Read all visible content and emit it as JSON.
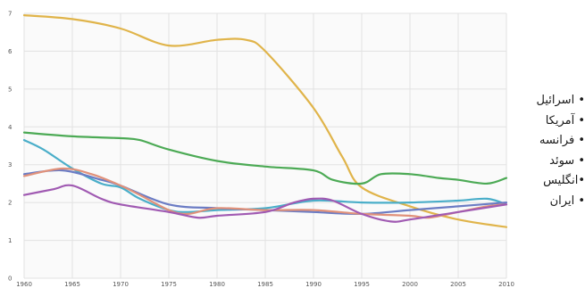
{
  "chart_data": {
    "type": "line",
    "title": "",
    "xlabel": "",
    "ylabel": "",
    "xlim": [
      1960,
      2010
    ],
    "ylim": [
      0,
      7
    ],
    "xticks": [
      1960,
      1965,
      1970,
      1975,
      1980,
      1985,
      1990,
      1995,
      2000,
      2005,
      2010
    ],
    "yticks": [
      0,
      1,
      2,
      3,
      4,
      5,
      6,
      7
    ],
    "grid": true,
    "legend_position": "right",
    "series": [
      {
        "name": "ایران",
        "color": "#e0b44a",
        "points": [
          [
            1960,
            6.95
          ],
          [
            1965,
            6.85
          ],
          [
            1970,
            6.6
          ],
          [
            1975,
            6.15
          ],
          [
            1980,
            6.3
          ],
          [
            1983,
            6.3
          ],
          [
            1985,
            6.0
          ],
          [
            1990,
            4.5
          ],
          [
            1993,
            3.2
          ],
          [
            1995,
            2.4
          ],
          [
            2000,
            1.9
          ],
          [
            2005,
            1.55
          ],
          [
            2010,
            1.35
          ]
        ]
      },
      {
        "name": "اسرائیل",
        "color": "#4caa55",
        "points": [
          [
            1960,
            3.85
          ],
          [
            1965,
            3.75
          ],
          [
            1970,
            3.7
          ],
          [
            1972,
            3.65
          ],
          [
            1975,
            3.4
          ],
          [
            1980,
            3.1
          ],
          [
            1985,
            2.95
          ],
          [
            1990,
            2.85
          ],
          [
            1992,
            2.6
          ],
          [
            1995,
            2.5
          ],
          [
            1997,
            2.75
          ],
          [
            2000,
            2.75
          ],
          [
            2003,
            2.65
          ],
          [
            2005,
            2.6
          ],
          [
            2008,
            2.5
          ],
          [
            2010,
            2.65
          ]
        ]
      },
      {
        "name": "آمریکا",
        "color": "#4aaec9",
        "points": [
          [
            1960,
            3.65
          ],
          [
            1962,
            3.4
          ],
          [
            1965,
            2.9
          ],
          [
            1968,
            2.5
          ],
          [
            1970,
            2.4
          ],
          [
            1972,
            2.1
          ],
          [
            1975,
            1.8
          ],
          [
            1977,
            1.75
          ],
          [
            1980,
            1.8
          ],
          [
            1985,
            1.85
          ],
          [
            1990,
            2.05
          ],
          [
            1995,
            2.0
          ],
          [
            2000,
            2.0
          ],
          [
            2005,
            2.05
          ],
          [
            2008,
            2.1
          ],
          [
            2010,
            1.95
          ]
        ]
      },
      {
        "name": "فرانسه",
        "color": "#6b7cc4",
        "points": [
          [
            1960,
            2.75
          ],
          [
            1964,
            2.85
          ],
          [
            1968,
            2.6
          ],
          [
            1970,
            2.45
          ],
          [
            1975,
            1.95
          ],
          [
            1980,
            1.85
          ],
          [
            1985,
            1.8
          ],
          [
            1990,
            1.75
          ],
          [
            1995,
            1.7
          ],
          [
            2000,
            1.8
          ],
          [
            2005,
            1.9
          ],
          [
            2010,
            2.0
          ]
        ]
      },
      {
        "name": "انگلیس",
        "color": "#e0917a",
        "points": [
          [
            1960,
            2.7
          ],
          [
            1964,
            2.9
          ],
          [
            1967,
            2.75
          ],
          [
            1970,
            2.45
          ],
          [
            1972,
            2.2
          ],
          [
            1975,
            1.8
          ],
          [
            1977,
            1.7
          ],
          [
            1980,
            1.85
          ],
          [
            1985,
            1.8
          ],
          [
            1990,
            1.8
          ],
          [
            1995,
            1.7
          ],
          [
            2000,
            1.65
          ],
          [
            2002,
            1.6
          ],
          [
            2005,
            1.75
          ],
          [
            2008,
            1.9
          ],
          [
            2010,
            1.95
          ]
        ]
      },
      {
        "name": "سوئد",
        "color": "#a05ab2",
        "points": [
          [
            1960,
            2.2
          ],
          [
            1963,
            2.35
          ],
          [
            1965,
            2.45
          ],
          [
            1968,
            2.1
          ],
          [
            1970,
            1.95
          ],
          [
            1975,
            1.75
          ],
          [
            1978,
            1.6
          ],
          [
            1980,
            1.65
          ],
          [
            1985,
            1.75
          ],
          [
            1988,
            2.0
          ],
          [
            1990,
            2.1
          ],
          [
            1992,
            2.05
          ],
          [
            1995,
            1.7
          ],
          [
            1998,
            1.5
          ],
          [
            2000,
            1.55
          ],
          [
            2005,
            1.75
          ],
          [
            2010,
            1.95
          ]
        ]
      }
    ]
  },
  "legend": {
    "items": [
      "• اسرائیل",
      "• آمریکا",
      "• فرانسه",
      "• سوئد",
      "•انگلیس",
      "• ایران"
    ]
  }
}
